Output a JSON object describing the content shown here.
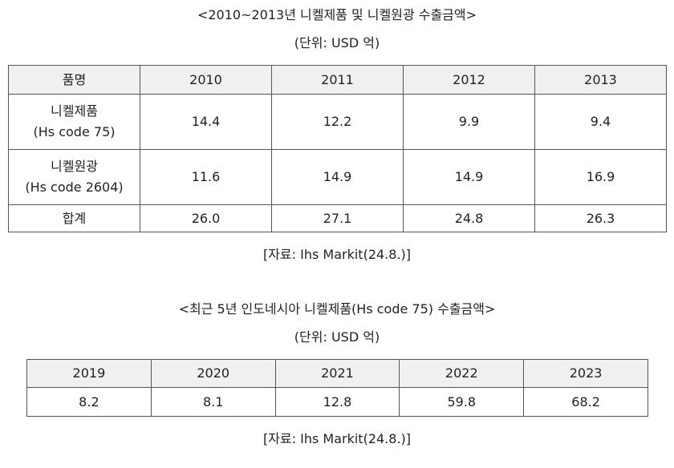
{
  "table1": {
    "title": "<2010~2013년 니켈제품 및 니켈원광 수출금액>",
    "unit": "(단위: USD 억)",
    "headers": [
      "품명",
      "2010",
      "2011",
      "2012",
      "2013"
    ],
    "rows": [
      {
        "name": "니켈제품",
        "code": "(Hs code 75)",
        "values": [
          "14.4",
          "12.2",
          "9.9",
          "9.4"
        ]
      },
      {
        "name": "니켈원광",
        "code": "(Hs code 2604)",
        "values": [
          "11.6",
          "14.9",
          "14.9",
          "16.9"
        ]
      }
    ],
    "total": {
      "name": "합계",
      "values": [
        "26.0",
        "27.1",
        "24.8",
        "26.3"
      ]
    },
    "source": "[자료: Ihs Markit(24.8.)]"
  },
  "table2": {
    "title": "<최근 5년 인도네시아 니켈제품(Hs code 75) 수출금액>",
    "unit": "(단위: USD 억)",
    "headers": [
      "2019",
      "2020",
      "2021",
      "2022",
      "2023"
    ],
    "values": [
      "8.2",
      "8.1",
      "12.8",
      "59.8",
      "68.2"
    ],
    "source": "[자료: Ihs Markit(24.8.)]"
  }
}
